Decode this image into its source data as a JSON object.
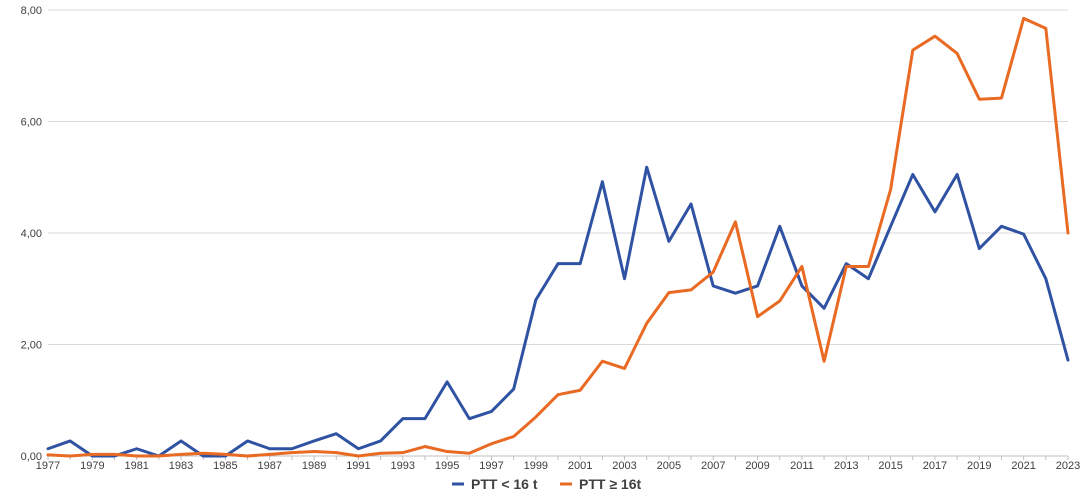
{
  "chart_data": {
    "type": "line",
    "title": "",
    "xlabel": "",
    "ylabel": "",
    "ylim": [
      0,
      8
    ],
    "y_ticks": [
      "0,00",
      "2,00",
      "4,00",
      "6,00",
      "8,00"
    ],
    "x_tick_labels": [
      "1977",
      "1979",
      "1981",
      "1983",
      "1985",
      "1987",
      "1989",
      "1991",
      "1993",
      "1995",
      "1997",
      "1999",
      "2001",
      "2003",
      "2005",
      "2007",
      "2009",
      "2011",
      "2013",
      "2015",
      "2017",
      "2019",
      "2021",
      "2023"
    ],
    "grid": "horizontal",
    "legend_position": "bottom",
    "x": [
      1977,
      1978,
      1979,
      1980,
      1981,
      1982,
      1983,
      1984,
      1985,
      1986,
      1987,
      1988,
      1989,
      1990,
      1991,
      1992,
      1993,
      1994,
      1995,
      1996,
      1997,
      1998,
      1999,
      2000,
      2001,
      2002,
      2003,
      2004,
      2005,
      2006,
      2007,
      2008,
      2009,
      2010,
      2011,
      2012,
      2013,
      2014,
      2015,
      2016,
      2017,
      2018,
      2019,
      2020,
      2021,
      2022,
      2023
    ],
    "series": [
      {
        "name": "PTT < 16 t",
        "color": "#2f52a3",
        "values": [
          0.13,
          0.27,
          0.0,
          0.0,
          0.13,
          0.0,
          0.27,
          0.0,
          0.0,
          0.27,
          0.13,
          0.13,
          0.27,
          0.4,
          0.13,
          0.27,
          0.67,
          0.67,
          1.33,
          0.67,
          0.8,
          1.2,
          2.8,
          3.45,
          3.45,
          4.92,
          3.18,
          5.18,
          3.85,
          4.52,
          3.05,
          2.92,
          3.05,
          4.12,
          3.05,
          2.65,
          3.45,
          3.18,
          4.12,
          5.05,
          4.38,
          5.05,
          3.72,
          4.12,
          3.98,
          3.18,
          1.72
        ]
      },
      {
        "name": "PTT ≥ 16t",
        "color": "#e96a23",
        "values": [
          0.02,
          0.0,
          0.03,
          0.03,
          0.0,
          0.0,
          0.03,
          0.05,
          0.03,
          0.0,
          0.03,
          0.06,
          0.08,
          0.06,
          0.0,
          0.05,
          0.06,
          0.17,
          0.08,
          0.05,
          0.22,
          0.35,
          0.7,
          1.1,
          1.18,
          1.7,
          1.57,
          2.38,
          2.93,
          2.98,
          3.3,
          4.2,
          2.5,
          2.78,
          3.4,
          1.7,
          3.4,
          3.4,
          4.78,
          7.28,
          7.53,
          7.22,
          6.4,
          6.42,
          7.85,
          7.67,
          4.0
        ]
      }
    ]
  }
}
